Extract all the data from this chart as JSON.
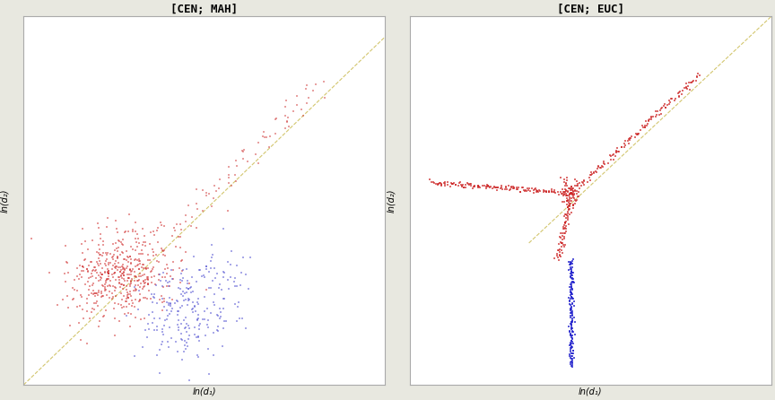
{
  "panel1_title": "[CEN; MAH]",
  "panel2_title": "[CEN; EUC]",
  "xlabel": "ln(d₁)",
  "ylabel": "ln(d₂)",
  "background_color": "#e8e8e0",
  "panel_bg": "#ffffff",
  "border_color": "#aaaaaa",
  "title_fontsize": 9,
  "axis_label_fontsize": 7,
  "seed": 42,
  "p1_xlim": [
    -3.5,
    5.0
  ],
  "p1_ylim": [
    -3.5,
    5.5
  ],
  "p2_xlim": [
    -4.0,
    4.5
  ],
  "p2_ylim": [
    -5.5,
    4.5
  ]
}
